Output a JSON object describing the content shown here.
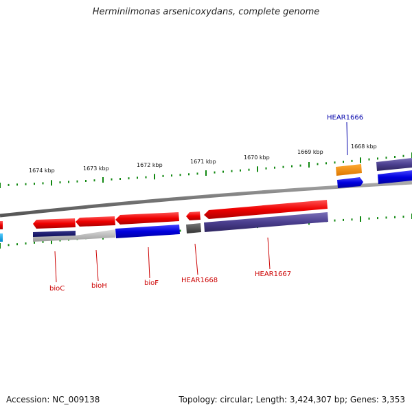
{
  "title": "Herminiimonas arsenicoxydans, complete genome",
  "footer": {
    "accession": "Accession: NC_009138",
    "summary": "Topology: circular; Length: 3,424,307 bp; Genes: 3,353"
  },
  "scale_labels": [
    "1674 kbp",
    "1673 kbp",
    "1672 kbp",
    "1671 kbp",
    "1670 kbp",
    "1669 kbp",
    "1668 kbp"
  ],
  "gene_labels": [
    {
      "text": "HEAR1666",
      "color": "#0000aa"
    },
    {
      "text": "bioC",
      "color": "#cc0000"
    },
    {
      "text": "bioH",
      "color": "#cc0000"
    },
    {
      "text": "bioF",
      "color": "#cc0000"
    },
    {
      "text": "HEAR1668",
      "color": "#cc0000"
    },
    {
      "text": "HEAR1667",
      "color": "#cc0000"
    }
  ],
  "colors": {
    "forward": "#ee0000",
    "reverse": "#0000dd",
    "hypothetical": "#4b3f8f",
    "rna": "#ff8800",
    "backbone": "#7a7a7a",
    "scale": "#118811"
  }
}
